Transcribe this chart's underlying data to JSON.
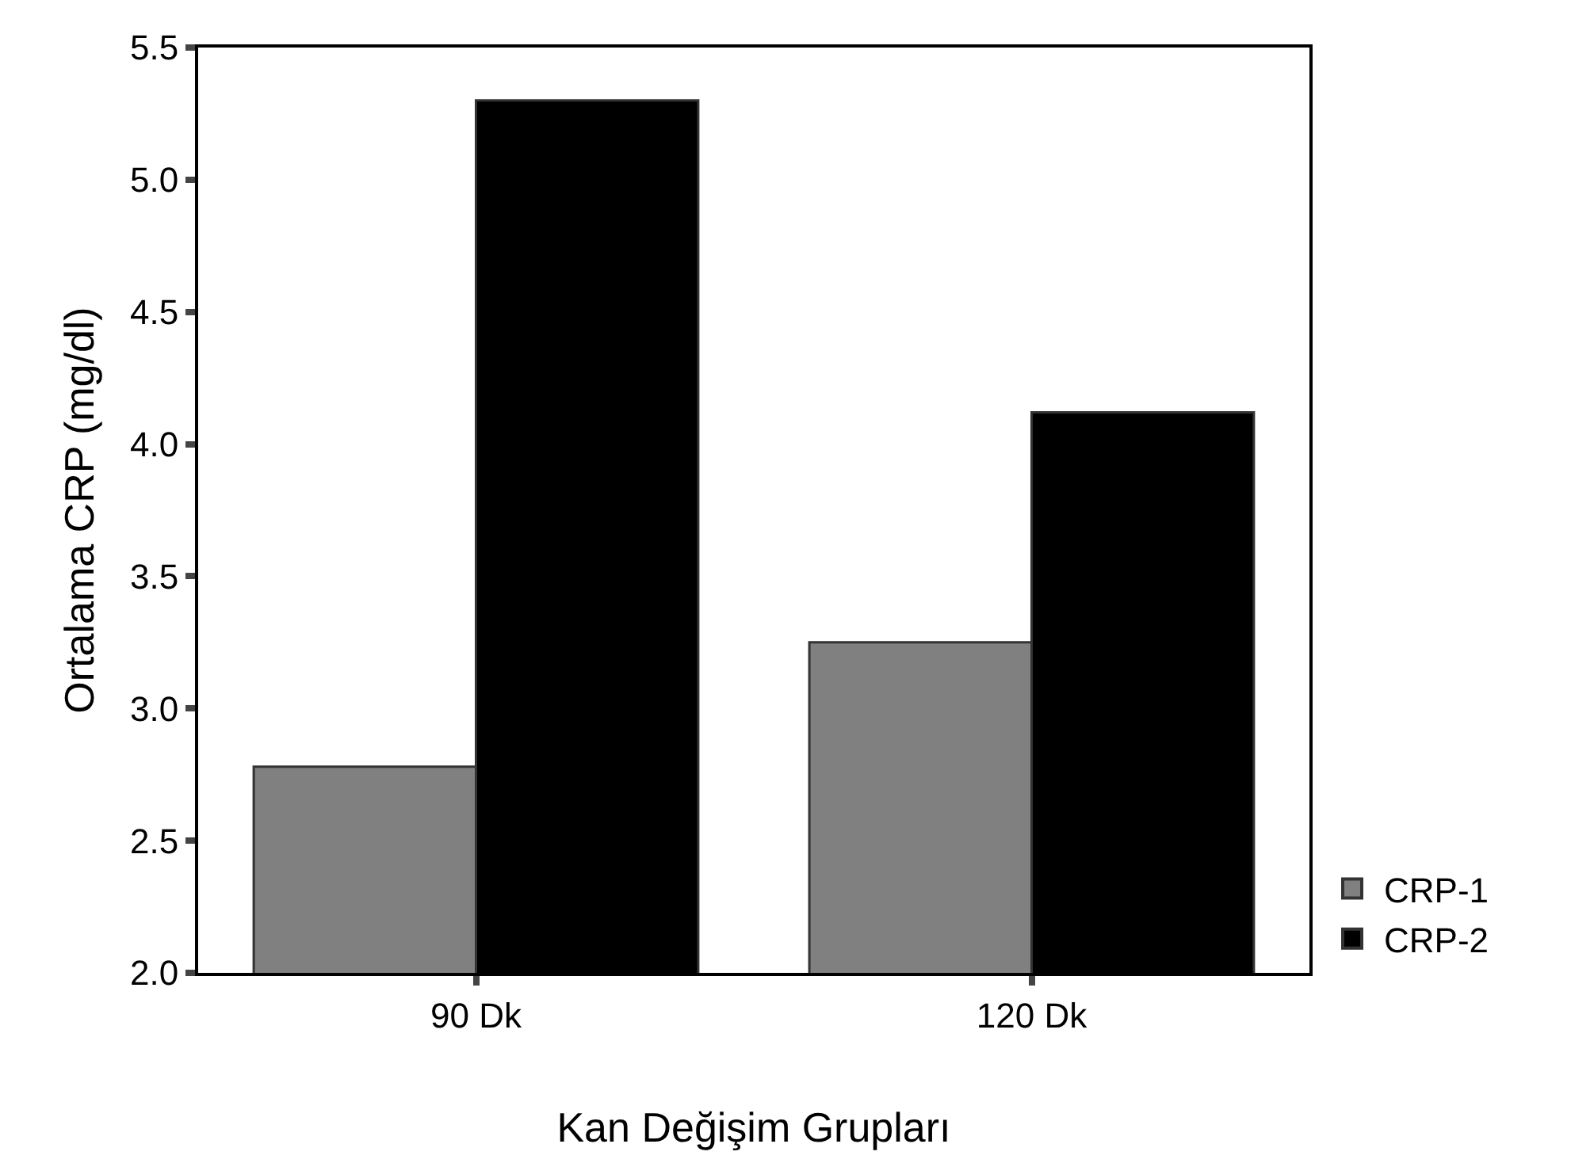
{
  "chart_data": {
    "type": "bar",
    "xlabel": "Kan Değişim Grupları",
    "ylabel": "Ortalama CRP (mg/dl)",
    "categories": [
      "90 Dk",
      "120 Dk"
    ],
    "series": [
      {
        "name": "CRP-1",
        "color": "#808080",
        "values": [
          2.78,
          3.25
        ]
      },
      {
        "name": "CRP-2",
        "color": "#000000",
        "values": [
          5.3,
          4.12
        ]
      }
    ],
    "ylim": [
      2.0,
      5.5
    ],
    "yticks": [
      {
        "value": 2.0,
        "label": "2.0"
      },
      {
        "value": 2.5,
        "label": "2.5"
      },
      {
        "value": 3.0,
        "label": "3.0"
      },
      {
        "value": 3.5,
        "label": "3.5"
      },
      {
        "value": 4.0,
        "label": "4.0"
      },
      {
        "value": 4.5,
        "label": "4.5"
      },
      {
        "value": 5.0,
        "label": "5.0"
      },
      {
        "value": 5.5,
        "label": "5.5"
      }
    ],
    "grid": false,
    "legend": "bottom right"
  }
}
